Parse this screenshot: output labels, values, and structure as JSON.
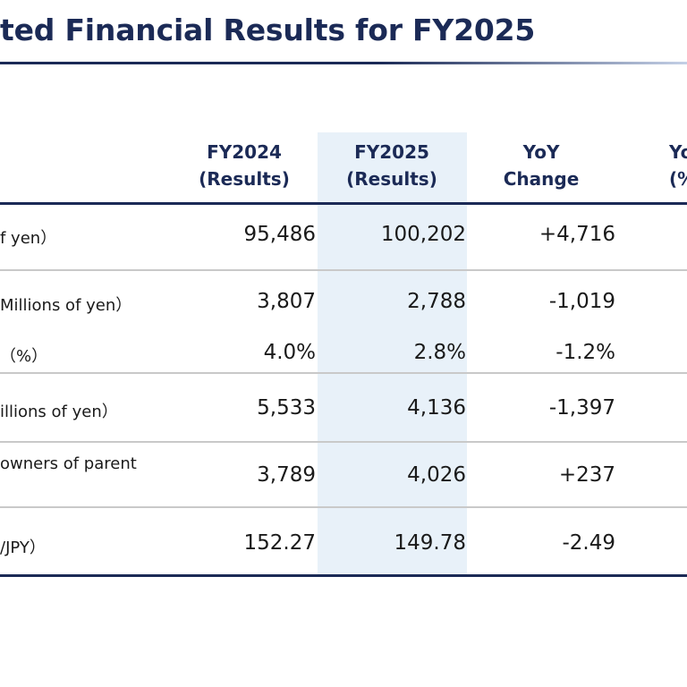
{
  "title": "ted Financial Results for FY2025",
  "columns": [
    {
      "line1": "FY2024",
      "line2": "(Results)"
    },
    {
      "line1": "FY2025",
      "line2": "(Results)"
    },
    {
      "line1": "YoY",
      "line2": "Change"
    },
    {
      "line1": "Yo",
      "line2": "(%"
    }
  ],
  "rows": [
    {
      "label": "f yen）",
      "fy2024": "95,486",
      "fy2025": "100,202",
      "yoy": "+4,716"
    },
    {
      "label": "Millions of yen）",
      "fy2024": "3,807",
      "fy2025": "2,788",
      "yoy": "-1,019"
    },
    {
      "label": "（%）",
      "fy2024": "4.0%",
      "fy2025": "2.8%",
      "yoy": "-1.2%"
    },
    {
      "label": "illions of yen）",
      "fy2024": "5,533",
      "fy2025": "4,136",
      "yoy": "-1,397"
    },
    {
      "label": "owners of parent",
      "fy2024": "3,789",
      "fy2025": "4,026",
      "yoy": "+237"
    },
    {
      "label": "/JPY）",
      "fy2024": "152.27",
      "fy2025": "149.78",
      "yoy": "-2.49"
    }
  ],
  "colors": {
    "navy": "#1b2a56",
    "highlight": "#e8f1f9",
    "divider": "#c9c9c9"
  }
}
